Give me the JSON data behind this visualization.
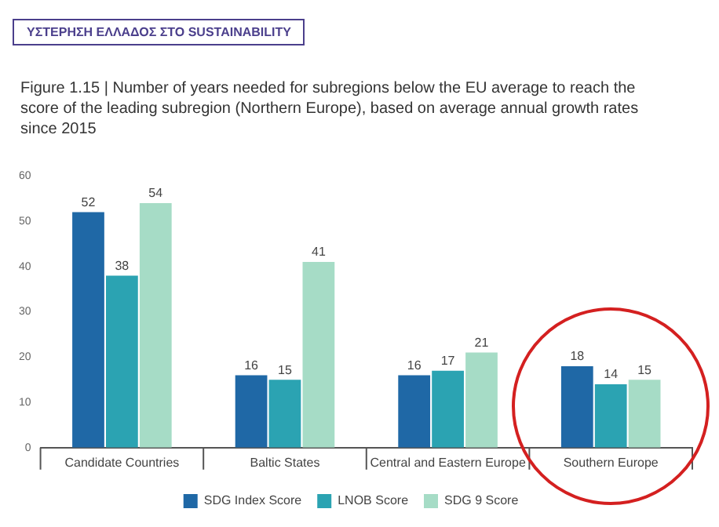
{
  "chart_data": {
    "type": "bar",
    "title": "Figure 1.15 | Number of years needed for subregions below the EU average to reach the score of the leading subregion (Northern Europe), based on average annual growth rates since 2015",
    "annotations": [
      "ΥΣΤΕΡΗΣΗ ΕΛΛΑΔΟΣ ΣΤΟ SUSTAINABILITY"
    ],
    "categories": [
      "Candidate Countries",
      "Baltic States",
      "Central and Eastern Europe",
      "Southern Europe"
    ],
    "series": [
      {
        "name": "SDG Index Score",
        "color": "#1f68a6",
        "values": [
          52,
          16,
          16,
          18
        ]
      },
      {
        "name": "LNOB Score",
        "color": "#2ba3b2",
        "values": [
          38,
          15,
          17,
          14
        ]
      },
      {
        "name": "SDG 9 Score",
        "color": "#a6dcc6",
        "values": [
          54,
          41,
          21,
          15
        ]
      }
    ],
    "ylim": [
      0,
      60
    ],
    "yticks": [
      0,
      10,
      20,
      30,
      40,
      50,
      60
    ],
    "grid": false,
    "legend": "bottom",
    "data_labels": true
  }
}
